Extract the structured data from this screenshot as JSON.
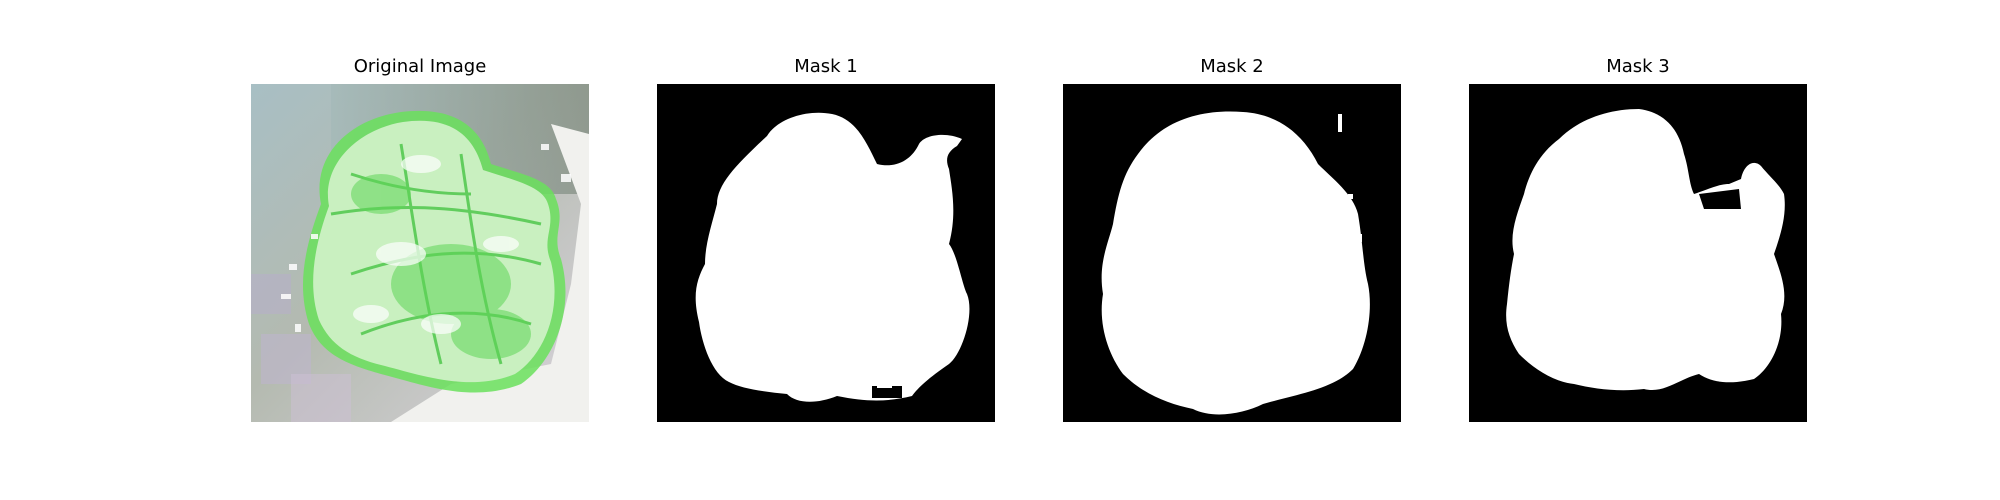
{
  "panels": [
    {
      "title": "Original Image"
    },
    {
      "title": "Mask 1"
    },
    {
      "title": "Mask 2"
    },
    {
      "title": "Mask 3"
    }
  ],
  "colors": {
    "background": "#ffffff",
    "mask_background": "#000000",
    "mask_foreground": "#ffffff",
    "leaf_green": "#4fd84a"
  }
}
